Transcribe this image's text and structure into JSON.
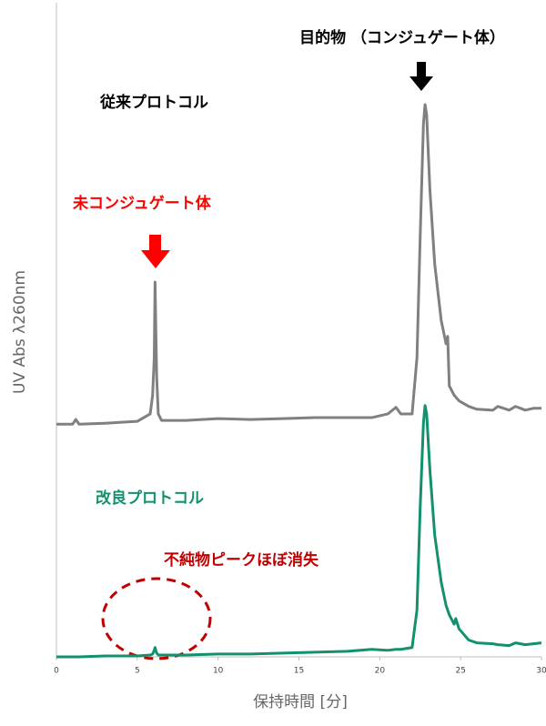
{
  "chart_data": {
    "type": "line",
    "x_label": "保持時間 [分]",
    "y_label": "UV Abs λ260nm",
    "annotations": [
      "目的物 （コンジュゲート体）",
      "未コンジュゲート体",
      "不純物ピークほぼ消失"
    ],
    "x": [
      0,
      1,
      1.2,
      1.4,
      3,
      5,
      5.8,
      5.95,
      6.05,
      6.1,
      6.2,
      6.3,
      6.5,
      8,
      10,
      12,
      14,
      16,
      18,
      19.5,
      20.5,
      21,
      21.3,
      22,
      22.3,
      22.5,
      22.7,
      22.8,
      22.9,
      23.1,
      23.4,
      23.8,
      24.1,
      24.2,
      24.3,
      24.6,
      24.7,
      24.9,
      25.5,
      26,
      27,
      27.3,
      28,
      28.4,
      29,
      29.5,
      30
    ],
    "series": [
      {
        "name": "従来プロトコル",
        "color": "#808080",
        "values": [
          2.49,
          2.49,
          2.54,
          2.49,
          2.5,
          2.52,
          2.6,
          2.8,
          3.2,
          4.01,
          3.0,
          2.6,
          2.53,
          2.53,
          2.55,
          2.54,
          2.55,
          2.56,
          2.56,
          2.56,
          2.6,
          2.67,
          2.6,
          2.6,
          3.2,
          4.5,
          5.7,
          5.91,
          5.8,
          5.0,
          4.2,
          3.6,
          3.35,
          3.43,
          2.9,
          2.8,
          2.78,
          2.74,
          2.68,
          2.65,
          2.64,
          2.68,
          2.64,
          2.68,
          2.64,
          2.66,
          2.66
        ]
      },
      {
        "name": "改良プロトコル",
        "color": "#13906e",
        "values": [
          0.0,
          0.0,
          0.0,
          0.0,
          0.01,
          0.01,
          0.02,
          0.03,
          0.07,
          0.1,
          0.04,
          0.02,
          0.02,
          0.02,
          0.03,
          0.03,
          0.04,
          0.05,
          0.06,
          0.08,
          0.07,
          0.08,
          0.08,
          0.1,
          0.5,
          1.6,
          2.5,
          2.69,
          2.6,
          2.0,
          1.3,
          0.8,
          0.55,
          0.5,
          0.45,
          0.35,
          0.41,
          0.3,
          0.18,
          0.15,
          0.14,
          0.13,
          0.12,
          0.15,
          0.13,
          0.14,
          0.15
        ]
      }
    ],
    "xlim": [
      0,
      30
    ],
    "xticks": [
      0,
      5,
      10,
      15,
      20,
      25,
      30
    ],
    "ylim": [
      0,
      7
    ]
  }
}
